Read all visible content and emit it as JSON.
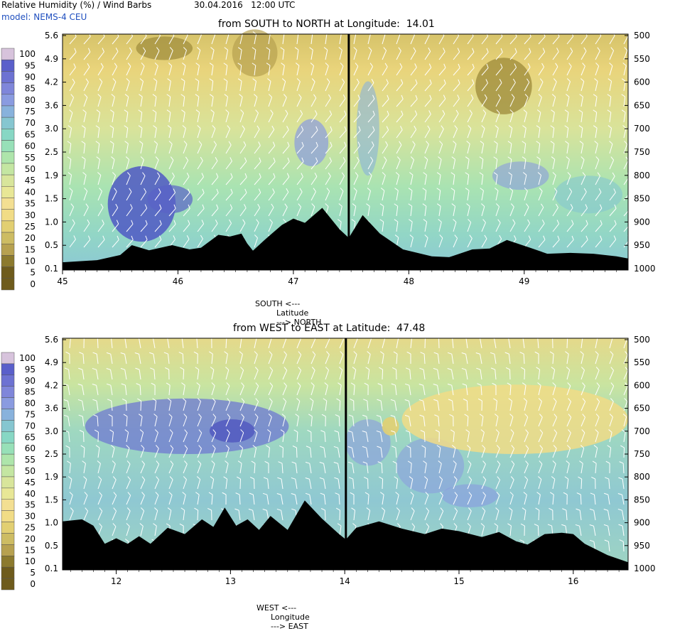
{
  "header": {
    "product": "Relative Humidity (%) / Wind Barbs",
    "datetime": "30.04.2016   12:00 UTC",
    "model": "model: NEMS-4 CEU"
  },
  "colors": {
    "humidity_scale": [
      "#6e5b1c",
      "#8c7a2e",
      "#b7a150",
      "#cdbc63",
      "#e2cf72",
      "#f1dc86",
      "#f3df92",
      "#e8e796",
      "#d8e59b",
      "#c4e6a2",
      "#aee5ab",
      "#97e0b8",
      "#87d7c4",
      "#86c6d0",
      "#88b2dc",
      "#8a9be0",
      "#7f86da",
      "#6d72d2",
      "#5a5fca",
      "#4a4fbd",
      "#d7c3dc"
    ],
    "terrain": "#000000",
    "section_line": "#000000",
    "barb": "#ffffff",
    "model_text": "#1f4fbf"
  },
  "chart_data": [
    {
      "type": "heatmap",
      "title": "from SOUTH to NORTH at Longitude:  14.01",
      "xlabel": "Latitude",
      "xlabel_left": "SOUTH <---",
      "xlabel_right": "---> NORTH",
      "x_ticks": [
        "45",
        "46",
        "47",
        "48",
        "49"
      ],
      "xlim": [
        45,
        49.9
      ],
      "y_left_ticks": [
        "5.6",
        "4.9",
        "4.2",
        "3.6",
        "3.0",
        "2.5",
        "1.9",
        "1.5",
        "1.0",
        "0.5",
        "0.1"
      ],
      "y_right_ticks": [
        "500",
        "550",
        "600",
        "650",
        "700",
        "750",
        "800",
        "850",
        "900",
        "950",
        "1000"
      ],
      "colorbar_labels": [
        "100",
        "95",
        "90",
        "85",
        "80",
        "75",
        "70",
        "65",
        "60",
        "55",
        "50",
        "45",
        "40",
        "35",
        "30",
        "25",
        "20",
        "15",
        "10",
        "5",
        "0"
      ],
      "section_marker_x": 47.48,
      "terrain_height_km": [
        [
          45,
          0.28
        ],
        [
          45.3,
          0.33
        ],
        [
          45.5,
          0.45
        ],
        [
          45.6,
          0.68
        ],
        [
          45.75,
          0.56
        ],
        [
          45.95,
          0.68
        ],
        [
          46.1,
          0.58
        ],
        [
          46.2,
          0.62
        ],
        [
          46.35,
          0.92
        ],
        [
          46.45,
          0.88
        ],
        [
          46.55,
          0.95
        ],
        [
          46.6,
          0.72
        ],
        [
          46.65,
          0.55
        ],
        [
          46.75,
          0.8
        ],
        [
          46.9,
          1.15
        ],
        [
          47.0,
          1.3
        ],
        [
          47.1,
          1.2
        ],
        [
          47.25,
          1.55
        ],
        [
          47.4,
          1.05
        ],
        [
          47.48,
          0.85
        ],
        [
          47.6,
          1.38
        ],
        [
          47.75,
          0.95
        ],
        [
          47.95,
          0.58
        ],
        [
          48.2,
          0.42
        ],
        [
          48.35,
          0.4
        ],
        [
          48.55,
          0.58
        ],
        [
          48.7,
          0.6
        ],
        [
          48.85,
          0.8
        ],
        [
          49.05,
          0.62
        ],
        [
          49.2,
          0.48
        ],
        [
          49.4,
          0.5
        ],
        [
          49.6,
          0.48
        ],
        [
          49.8,
          0.42
        ],
        [
          49.9,
          0.37
        ]
      ],
      "notes": "Relative humidity shaded, wind barbs overlaid"
    },
    {
      "type": "heatmap",
      "title": "from WEST to EAST at Latitude:  47.48",
      "xlabel": "Longitude",
      "xlabel_left": "WEST <---",
      "xlabel_right": "---> EAST",
      "x_ticks": [
        "12",
        "13",
        "14",
        "15",
        "16"
      ],
      "xlim": [
        11.53,
        16.48
      ],
      "y_left_ticks": [
        "5.6",
        "4.9",
        "4.2",
        "3.6",
        "3.0",
        "2.5",
        "1.9",
        "1.5",
        "1.0",
        "0.5",
        "0.1"
      ],
      "y_right_ticks": [
        "500",
        "550",
        "600",
        "650",
        "700",
        "750",
        "800",
        "850",
        "900",
        "950",
        "1000"
      ],
      "colorbar_labels": [
        "100",
        "95",
        "90",
        "85",
        "80",
        "75",
        "70",
        "65",
        "60",
        "55",
        "50",
        "45",
        "40",
        "35",
        "30",
        "25",
        "20",
        "15",
        "10",
        "5",
        "0"
      ],
      "section_marker_x": 14.01,
      "terrain_height_km": [
        [
          11.53,
          1.25
        ],
        [
          11.7,
          1.3
        ],
        [
          11.8,
          1.15
        ],
        [
          11.9,
          0.72
        ],
        [
          12.0,
          0.85
        ],
        [
          12.1,
          0.72
        ],
        [
          12.2,
          0.9
        ],
        [
          12.3,
          0.72
        ],
        [
          12.45,
          1.1
        ],
        [
          12.6,
          0.95
        ],
        [
          12.75,
          1.3
        ],
        [
          12.85,
          1.12
        ],
        [
          12.95,
          1.58
        ],
        [
          13.05,
          1.15
        ],
        [
          13.15,
          1.3
        ],
        [
          13.25,
          1.05
        ],
        [
          13.35,
          1.38
        ],
        [
          13.5,
          1.05
        ],
        [
          13.65,
          1.75
        ],
        [
          13.8,
          1.32
        ],
        [
          13.95,
          0.95
        ],
        [
          14.01,
          0.82
        ],
        [
          14.1,
          1.1
        ],
        [
          14.3,
          1.25
        ],
        [
          14.5,
          1.08
        ],
        [
          14.7,
          0.95
        ],
        [
          14.85,
          1.08
        ],
        [
          15.0,
          1.02
        ],
        [
          15.2,
          0.88
        ],
        [
          15.35,
          1.0
        ],
        [
          15.5,
          0.78
        ],
        [
          15.6,
          0.7
        ],
        [
          15.75,
          0.95
        ],
        [
          15.9,
          0.98
        ],
        [
          16.0,
          0.95
        ],
        [
          16.1,
          0.72
        ],
        [
          16.3,
          0.45
        ],
        [
          16.48,
          0.28
        ]
      ],
      "notes": "Relative humidity shaded, wind barbs overlaid"
    }
  ]
}
